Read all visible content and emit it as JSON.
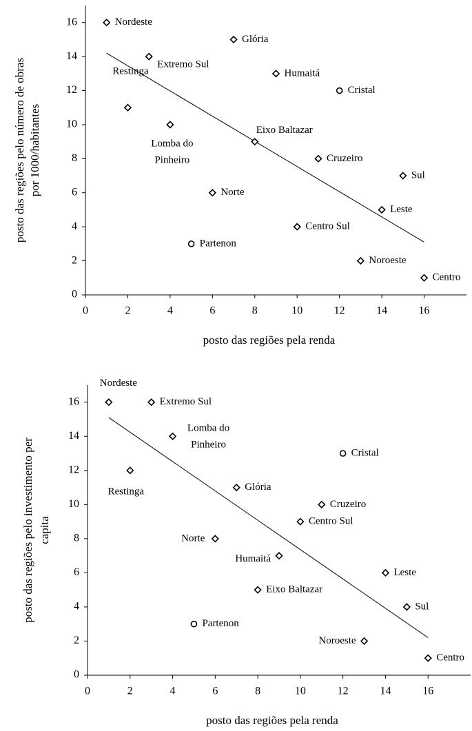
{
  "chart_data": [
    {
      "type": "scatter",
      "xlabel": "posto das regiões pela renda",
      "ylabel": [
        "posto das regiões pelo  número de obras",
        "por 1000/habitantes"
      ],
      "x": [
        1,
        7,
        3,
        9,
        12,
        2,
        4,
        8,
        11,
        15,
        6,
        14,
        10,
        5,
        13,
        16
      ],
      "y": [
        16,
        15,
        14,
        13,
        12,
        11,
        10,
        9,
        8,
        7,
        6,
        5,
        4,
        3,
        2,
        1
      ],
      "labels": [
        "Nordeste",
        "Glória",
        "Extremo Sul",
        "Humaitá",
        "Cristal",
        "Restinga",
        [
          "Lomba do",
          "Pinheiro"
        ],
        "Eixo Baltazar",
        "Cruzeiro",
        "Sul",
        "Norte",
        "Leste",
        "Centro Sul",
        "Partenon",
        "Noroeste",
        "Centro"
      ],
      "markers": [
        "diamond",
        "diamond",
        "diamond",
        "diamond",
        "circle",
        "diamond",
        "diamond",
        "diamond",
        "diamond",
        "diamond",
        "diamond",
        "diamond",
        "diamond",
        "circle",
        "diamond",
        "diamond"
      ],
      "color": "#000000",
      "trendline": {
        "x": [
          1,
          16
        ],
        "y": [
          14.2,
          3.1
        ]
      },
      "xlim": [
        0,
        18
      ],
      "xticks": [
        0,
        2,
        4,
        6,
        8,
        10,
        12,
        14,
        16
      ],
      "ylim": [
        0,
        17
      ],
      "yticks": [
        0,
        2,
        4,
        6,
        8,
        10,
        12,
        14,
        16
      ]
    },
    {
      "type": "scatter",
      "xlabel": "posto das regiões pela renda",
      "ylabel": [
        "posto das regiões pelo investimento per",
        "capita"
      ],
      "x": [
        1,
        3,
        4,
        12,
        2,
        7,
        11,
        10,
        6,
        9,
        14,
        8,
        15,
        5,
        13,
        16
      ],
      "y": [
        16,
        16,
        14,
        13,
        12,
        11,
        10,
        9,
        8,
        7,
        6,
        5,
        4,
        3,
        2,
        1
      ],
      "labels": [
        "Nordeste",
        "Extremo Sul",
        [
          "Lomba do",
          "Pinheiro"
        ],
        "Cristal",
        "Restinga",
        "Glória",
        "Cruzeiro",
        "Centro Sul",
        "Norte",
        "Humaitá",
        "Leste",
        "Eixo Baltazar",
        "Sul",
        "Partenon",
        "Noroeste",
        "Centro"
      ],
      "markers": [
        "diamond",
        "diamond",
        "diamond",
        "circle",
        "diamond",
        "diamond",
        "diamond",
        "diamond",
        "diamond",
        "diamond",
        "diamond",
        "diamond",
        "diamond",
        "circle",
        "diamond",
        "diamond"
      ],
      "color": "#000000",
      "trendline": {
        "x": [
          1,
          16
        ],
        "y": [
          15.1,
          2.2
        ]
      },
      "xlim": [
        0,
        18
      ],
      "xticks": [
        0,
        2,
        4,
        6,
        8,
        10,
        12,
        14,
        16
      ],
      "ylim": [
        0,
        17
      ],
      "yticks": [
        0,
        2,
        4,
        6,
        8,
        10,
        12,
        14,
        16
      ]
    }
  ]
}
